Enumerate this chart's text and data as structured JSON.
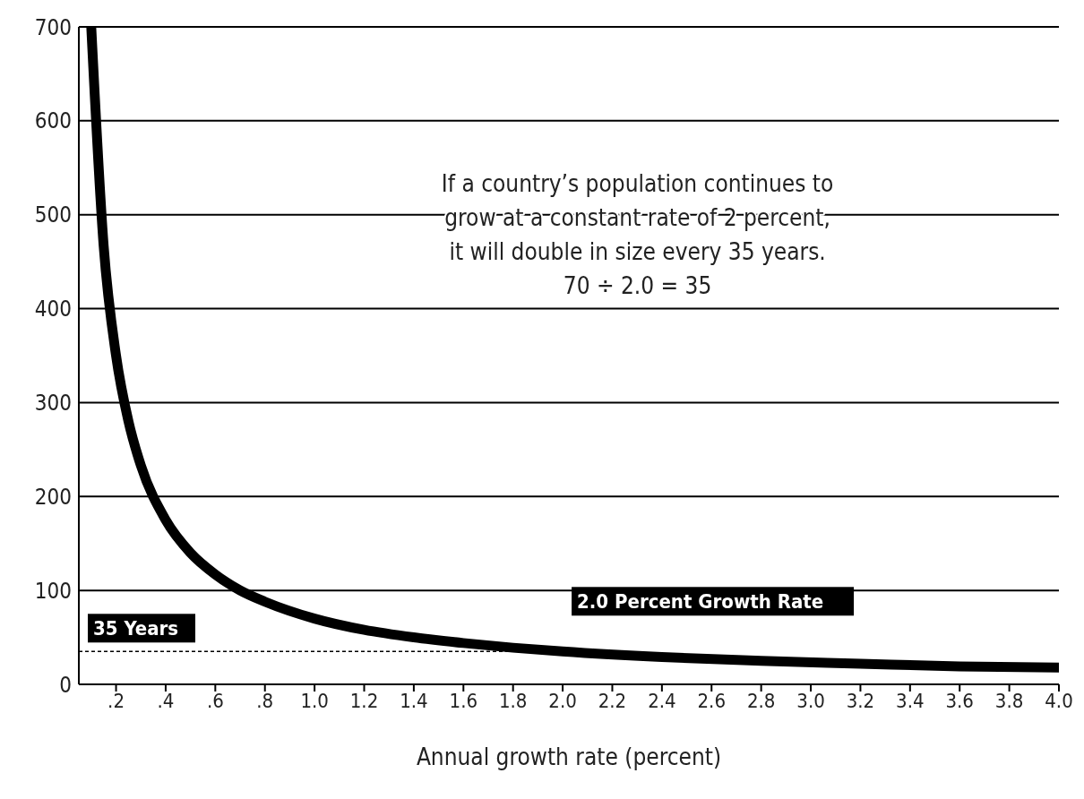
{
  "chart_data": {
    "type": "line",
    "xlabel": "Annual growth rate (percent)",
    "x": [
      0.1,
      0.15,
      0.2,
      0.25,
      0.3,
      0.4,
      0.5,
      0.6,
      0.7,
      0.8,
      1.0,
      1.2,
      1.4,
      1.6,
      1.8,
      2.0,
      2.4,
      2.8,
      3.2,
      3.6,
      4.0
    ],
    "series": [
      {
        "color": "#000000",
        "values": [
          700,
          467,
          350,
          280,
          233,
          175,
          140,
          117,
          100,
          88,
          70,
          58,
          50,
          44,
          39,
          35,
          29,
          25,
          22,
          19,
          18
        ]
      }
    ],
    "xlim": [
      0.05,
      4.0
    ],
    "xticks": [
      {
        "value": 0.2,
        "label": ".2"
      },
      {
        "value": 0.4,
        "label": ".4"
      },
      {
        "value": 0.6,
        "label": ".6"
      },
      {
        "value": 0.8,
        "label": ".8"
      },
      {
        "value": 1.0,
        "label": "1.0"
      },
      {
        "value": 1.2,
        "label": "1.2"
      },
      {
        "value": 1.4,
        "label": "1.4"
      },
      {
        "value": 1.6,
        "label": "1.6"
      },
      {
        "value": 1.8,
        "label": "1.8"
      },
      {
        "value": 2.0,
        "label": "2.0"
      },
      {
        "value": 2.2,
        "label": "2.2"
      },
      {
        "value": 2.4,
        "label": "2.4"
      },
      {
        "value": 2.6,
        "label": "2.6"
      },
      {
        "value": 2.8,
        "label": "2.8"
      },
      {
        "value": 3.0,
        "label": "3.0"
      },
      {
        "value": 3.2,
        "label": "3.2"
      },
      {
        "value": 3.4,
        "label": "3.4"
      },
      {
        "value": 3.6,
        "label": "3.6"
      },
      {
        "value": 3.8,
        "label": "3.8"
      },
      {
        "value": 4.0,
        "label": "4.0"
      }
    ],
    "ylim": [
      0,
      700
    ],
    "yticks": [
      0,
      100,
      200,
      300,
      400,
      500,
      600,
      700
    ],
    "grid": "y",
    "marker": "none",
    "line_style": "solid",
    "ref_lines": [
      {
        "axis": "y",
        "value": 35,
        "label": "35 Years",
        "line_style": "dashed",
        "color": "#000000"
      }
    ],
    "annotations": [
      {
        "text": "2.0 Percent Growth Rate",
        "x": 2.0,
        "y": 35
      },
      "If a country’s population continues to\ngrow at a constant rate of 2 percent,\nit will double in size every 35 years.\n70 ÷ 2.0 = 35"
    ]
  }
}
